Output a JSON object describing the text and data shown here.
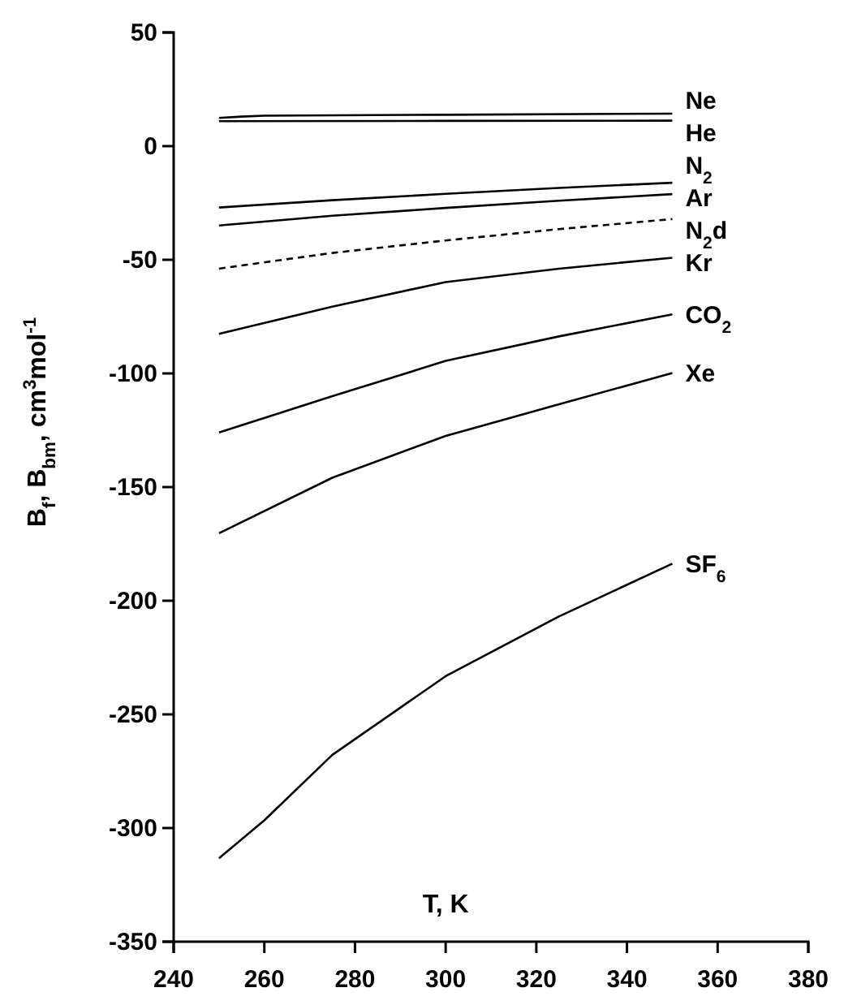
{
  "chart_data": {
    "type": "line",
    "xlabel": "T, K",
    "ylabel": "B$_{f}$, B$_{bm}$, cm$^{3}$mol$^{-1}$",
    "xlim": [
      240,
      380
    ],
    "xticks": [
      240,
      260,
      280,
      300,
      320,
      340,
      360,
      380
    ],
    "ylim": [
      -350,
      50
    ],
    "yticks": [
      -350,
      -300,
      -250,
      -200,
      -150,
      -100,
      -50,
      0,
      50
    ],
    "grid": false,
    "marker": "none",
    "series": [
      {
        "name": "Ne",
        "color": "#000000",
        "x": [
          250,
          255,
          260,
          300,
          350
        ],
        "values": [
          12.4,
          13.0,
          13.4,
          13.8,
          14.3
        ]
      },
      {
        "name": "He",
        "color": "#000000",
        "x": [
          250,
          300,
          350
        ],
        "values": [
          11.0,
          11.1,
          11.2
        ]
      },
      {
        "name": "N$_{2}$",
        "color": "#000000",
        "x": [
          250,
          275,
          300,
          325,
          350
        ],
        "values": [
          -27.0,
          -23.8,
          -21.0,
          -18.4,
          -16.1
        ]
      },
      {
        "name": "Ar",
        "color": "#000000",
        "x": [
          250,
          275,
          300,
          325,
          350
        ],
        "values": [
          -34.9,
          -30.6,
          -27.2,
          -24.0,
          -21.1
        ]
      },
      {
        "name": "N$_{2}$d",
        "color": "#000000",
        "line_style": "dashed",
        "x": [
          250,
          275,
          300,
          325,
          350
        ],
        "values": [
          -53.9,
          -47.0,
          -41.5,
          -36.5,
          -32.1
        ]
      },
      {
        "name": "Kr",
        "color": "#000000",
        "x": [
          250,
          275,
          300,
          325,
          350
        ],
        "values": [
          -82.6,
          -70.6,
          -59.8,
          -53.9,
          -49.1
        ]
      },
      {
        "name": "CO$_{2}$",
        "color": "#000000",
        "x": [
          250,
          275,
          300,
          325,
          350
        ],
        "values": [
          -126.0,
          -110.0,
          -94.5,
          -83.7,
          -74.0
        ]
      },
      {
        "name": "Xe",
        "color": "#000000",
        "x": [
          250,
          275,
          300,
          325,
          350
        ],
        "values": [
          -170.3,
          -145.9,
          -127.5,
          -113.6,
          -99.8
        ]
      },
      {
        "name": "SF$_{6}$",
        "color": "#000000",
        "x": [
          250,
          260,
          275,
          300,
          325,
          350
        ],
        "values": [
          -313.3,
          -296.6,
          -267.8,
          -233.2,
          -206.9,
          -183.7
        ]
      }
    ]
  }
}
